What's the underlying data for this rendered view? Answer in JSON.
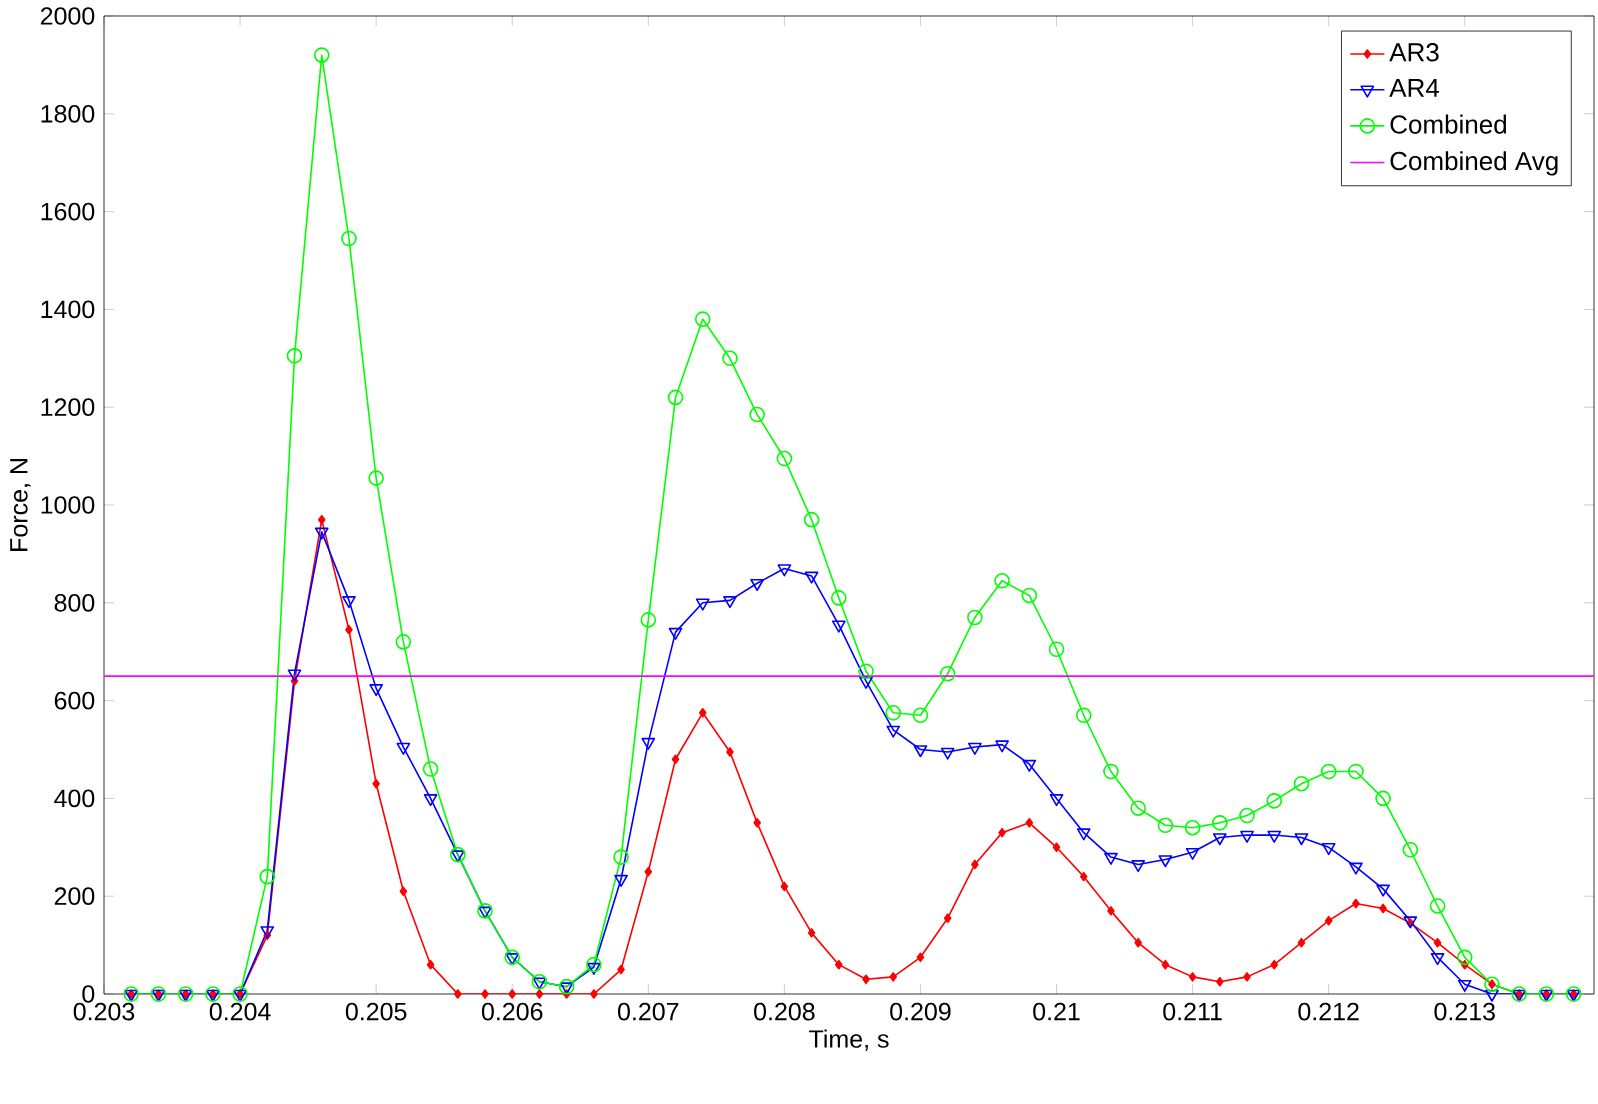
{
  "chart_data": {
    "type": "line",
    "xlabel": "Time, s",
    "ylabel": "Force, N",
    "x": [
      0.2032,
      0.2034,
      0.2036,
      0.2038,
      0.204,
      0.2042,
      0.2044,
      0.2046,
      0.2048,
      0.205,
      0.2052,
      0.2054,
      0.2056,
      0.2058,
      0.206,
      0.2062,
      0.2064,
      0.2066,
      0.2068,
      0.207,
      0.2072,
      0.2074,
      0.2076,
      0.2078,
      0.208,
      0.2082,
      0.2084,
      0.2086,
      0.2088,
      0.209,
      0.2092,
      0.2094,
      0.2096,
      0.2098,
      0.21,
      0.2102,
      0.2104,
      0.2106,
      0.2108,
      0.211,
      0.2112,
      0.2114,
      0.2116,
      0.2118,
      0.212,
      0.2122,
      0.2124,
      0.2126,
      0.2128,
      0.213,
      0.2132,
      0.2134,
      0.2136,
      0.2138
    ],
    "series": [
      {
        "name": "AR3",
        "color": "#ff0000",
        "marker": "diamond",
        "values": [
          0,
          0,
          0,
          0,
          0,
          120,
          640,
          970,
          745,
          430,
          210,
          60,
          0,
          0,
          0,
          0,
          0,
          0,
          50,
          250,
          480,
          575,
          495,
          350,
          220,
          125,
          60,
          30,
          35,
          75,
          155,
          265,
          330,
          350,
          300,
          240,
          170,
          105,
          60,
          35,
          25,
          35,
          60,
          105,
          150,
          185,
          175,
          145,
          105,
          60,
          20,
          0,
          0,
          0
        ]
      },
      {
        "name": "AR4",
        "color": "#0000ff",
        "marker": "triangle",
        "values": [
          0,
          0,
          0,
          0,
          0,
          130,
          655,
          945,
          805,
          625,
          505,
          400,
          285,
          170,
          75,
          25,
          15,
          55,
          235,
          515,
          740,
          800,
          805,
          840,
          870,
          855,
          755,
          640,
          540,
          500,
          495,
          505,
          510,
          470,
          400,
          330,
          280,
          265,
          275,
          290,
          320,
          325,
          325,
          320,
          300,
          260,
          215,
          150,
          75,
          20,
          0,
          0,
          0,
          0
        ]
      },
      {
        "name": "Combined",
        "color": "#00ff00",
        "marker": "circle",
        "values": [
          0,
          0,
          0,
          0,
          0,
          240,
          1305,
          1920,
          1545,
          1055,
          720,
          460,
          285,
          170,
          75,
          25,
          15,
          60,
          280,
          765,
          1220,
          1380,
          1300,
          1185,
          1095,
          970,
          810,
          660,
          575,
          570,
          655,
          770,
          845,
          815,
          705,
          570,
          455,
          380,
          345,
          340,
          350,
          365,
          395,
          430,
          455,
          455,
          400,
          295,
          180,
          75,
          20,
          0,
          0,
          0
        ]
      }
    ],
    "ref_lines": [
      {
        "axis": "y",
        "value": 650,
        "label": "Combined Avg",
        "color": "#ff00ff"
      }
    ],
    "xlim": [
      0.203,
      0.21395
    ],
    "ylim": [
      0,
      2000
    ],
    "xticks": [
      0.203,
      0.204,
      0.205,
      0.206,
      0.207,
      0.208,
      0.209,
      0.21,
      0.211,
      0.212,
      0.213
    ],
    "yticks": [
      0,
      200,
      400,
      600,
      800,
      1000,
      1200,
      1400,
      1600,
      1800,
      2000
    ],
    "legend": "top right"
  }
}
